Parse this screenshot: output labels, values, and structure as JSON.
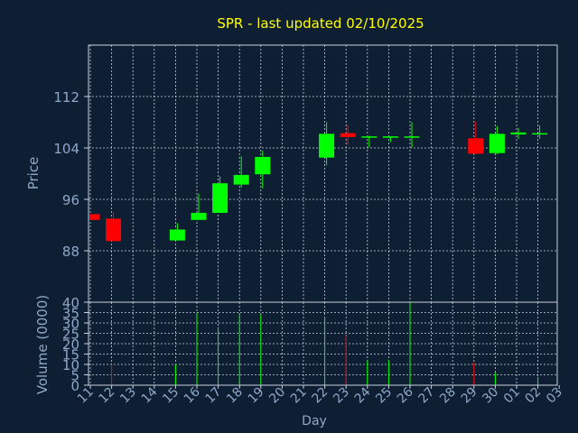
{
  "chart_data": [
    {
      "type": "candlestick",
      "title": "SPR - last updated 02/10/2025",
      "ylabel": "Price",
      "ylim": [
        80,
        120
      ],
      "yticks": [
        88,
        96,
        104,
        112
      ],
      "grid": true,
      "categories": [
        "11",
        "12",
        "13",
        "14",
        "15",
        "16",
        "17",
        "18",
        "19",
        "20",
        "21",
        "22",
        "23",
        "24",
        "25",
        "26",
        "27",
        "28",
        "29",
        "30",
        "01",
        "02",
        "03"
      ],
      "ohlc": [
        {
          "day": "11",
          "open": 93.7,
          "high": 93.7,
          "low": 92.8,
          "close": 92.8
        },
        {
          "day": "12",
          "open": 93.0,
          "high": 94.0,
          "low": 89.5,
          "close": 89.5
        },
        {
          "day": "15",
          "open": 89.6,
          "high": 92.3,
          "low": 89.6,
          "close": 91.3
        },
        {
          "day": "16",
          "open": 92.8,
          "high": 96.9,
          "low": 92.8,
          "close": 93.9
        },
        {
          "day": "17",
          "open": 93.9,
          "high": 99.6,
          "low": 93.9,
          "close": 98.5
        },
        {
          "day": "18",
          "open": 98.3,
          "high": 102.7,
          "low": 97.8,
          "close": 99.8
        },
        {
          "day": "19",
          "open": 99.9,
          "high": 103.6,
          "low": 97.7,
          "close": 102.6
        },
        {
          "day": "22",
          "open": 102.5,
          "high": 108.0,
          "low": 101.3,
          "close": 106.2
        },
        {
          "day": "23",
          "open": 106.3,
          "high": 107.6,
          "low": 104.5,
          "close": 105.7
        },
        {
          "day": "24",
          "open": 105.6,
          "high": 105.9,
          "low": 104.1,
          "close": 105.8
        },
        {
          "day": "25",
          "open": 105.7,
          "high": 105.8,
          "low": 104.9,
          "close": 105.8
        },
        {
          "day": "26",
          "open": 105.7,
          "high": 108.0,
          "low": 104.1,
          "close": 105.8
        },
        {
          "day": "29",
          "open": 105.5,
          "high": 108.1,
          "low": 103.0,
          "close": 103.1
        },
        {
          "day": "30",
          "open": 103.2,
          "high": 107.4,
          "low": 103.0,
          "close": 106.2
        },
        {
          "day": "01",
          "open": 106.1,
          "high": 107.1,
          "low": 105.4,
          "close": 106.4
        },
        {
          "day": "02",
          "open": 106.1,
          "high": 107.5,
          "low": 105.4,
          "close": 106.3
        }
      ]
    },
    {
      "type": "bar",
      "ylabel": "Volume (0000)",
      "xlabel": "Day",
      "ylim": [
        0,
        40
      ],
      "yticks": [
        0,
        5,
        10,
        15,
        20,
        25,
        30,
        35,
        40
      ],
      "grid": true,
      "categories": [
        "11",
        "12",
        "13",
        "14",
        "15",
        "16",
        "17",
        "18",
        "19",
        "20",
        "21",
        "22",
        "23",
        "24",
        "25",
        "26",
        "27",
        "28",
        "29",
        "30",
        "01",
        "02",
        "03"
      ],
      "values": [
        {
          "day": "12",
          "value": 10,
          "direction": "down"
        },
        {
          "day": "15",
          "value": 10,
          "direction": "up"
        },
        {
          "day": "16",
          "value": 35,
          "direction": "up"
        },
        {
          "day": "17",
          "value": 28,
          "direction": "up"
        },
        {
          "day": "18",
          "value": 34,
          "direction": "up"
        },
        {
          "day": "19",
          "value": 34,
          "direction": "up"
        },
        {
          "day": "22",
          "value": 33,
          "direction": "up"
        },
        {
          "day": "23",
          "value": 24,
          "direction": "down"
        },
        {
          "day": "24",
          "value": 12,
          "direction": "up"
        },
        {
          "day": "25",
          "value": 12,
          "direction": "up"
        },
        {
          "day": "26",
          "value": 40,
          "direction": "up"
        },
        {
          "day": "29",
          "value": 11,
          "direction": "down"
        },
        {
          "day": "30",
          "value": 6,
          "direction": "up"
        },
        {
          "day": "02",
          "value": 4,
          "direction": "up"
        }
      ]
    }
  ],
  "colors": {
    "background": "#0f1f33",
    "title": "#ffff00",
    "axis_text": "#8fa8c8",
    "frame": "#c8d0dc",
    "grid": "#c8d0dc",
    "up": "#00ff00",
    "down": "#ff0000"
  }
}
